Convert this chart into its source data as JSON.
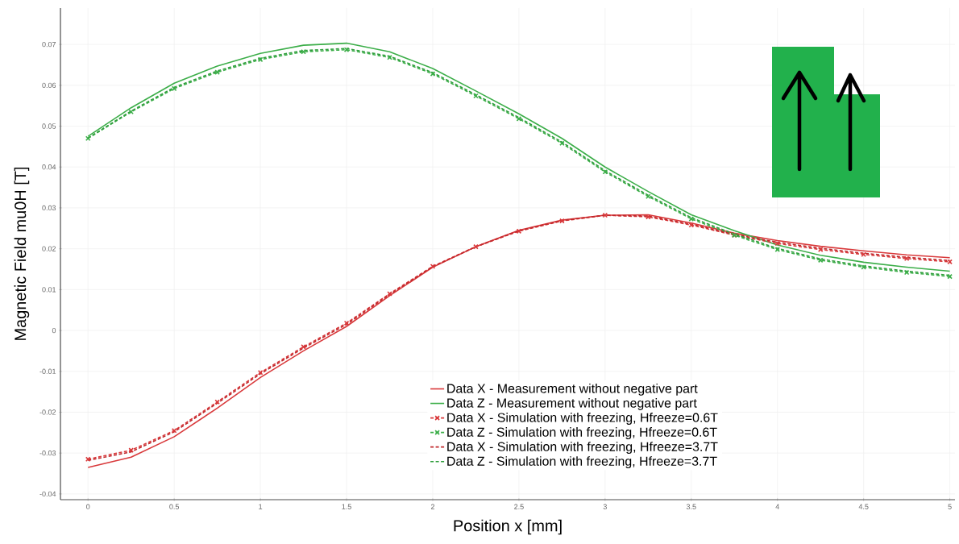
{
  "chart_data": {
    "type": "line",
    "xlabel": "Position x [mm]",
    "ylabel": "Magnetic Field mu0H [T]",
    "x": [
      0,
      0.25,
      0.5,
      0.75,
      1,
      1.25,
      1.5,
      1.75,
      2,
      2.25,
      2.5,
      2.75,
      3,
      3.25,
      3.5,
      3.75,
      4,
      4.25,
      4.5,
      4.75,
      5
    ],
    "series": [
      {
        "name": "Data X - Measurement without negative part",
        "color": "#d9393b",
        "line_style": "solid",
        "marker": "none",
        "values": [
          -0.0335,
          -0.031,
          -0.026,
          -0.019,
          -0.0115,
          -0.005,
          0.001,
          0.0085,
          0.0155,
          0.0205,
          0.0245,
          0.027,
          0.0282,
          0.0283,
          0.0263,
          0.0238,
          0.022,
          0.0206,
          0.0195,
          0.0185,
          0.0178
        ]
      },
      {
        "name": "Data Z - Measurement without negative part",
        "color": "#3cae49",
        "line_style": "solid",
        "marker": "none",
        "values": [
          0.0475,
          0.0545,
          0.0605,
          0.0647,
          0.0678,
          0.0698,
          0.0703,
          0.0682,
          0.0641,
          0.0586,
          0.053,
          0.047,
          0.04,
          0.034,
          0.0283,
          0.0244,
          0.0209,
          0.0184,
          0.0167,
          0.0155,
          0.0145
        ]
      },
      {
        "name": "Data X - Simulation with freezing, Hfreeze=0.6T",
        "color": "#d9393b",
        "line_style": "dashed",
        "marker": "cross",
        "values": [
          -0.0315,
          -0.0293,
          -0.0245,
          -0.0175,
          -0.0103,
          -0.004,
          0.0018,
          0.009,
          0.0157,
          0.0205,
          0.0243,
          0.0268,
          0.0282,
          0.0278,
          0.0258,
          0.0233,
          0.0213,
          0.0198,
          0.0186,
          0.0176,
          0.0168
        ]
      },
      {
        "name": "Data Z - Simulation with freezing, Hfreeze=0.6T",
        "color": "#3cae49",
        "line_style": "dashed",
        "marker": "cross",
        "values": [
          0.047,
          0.0535,
          0.0592,
          0.0632,
          0.0663,
          0.0682,
          0.0687,
          0.0668,
          0.0628,
          0.0574,
          0.0518,
          0.0458,
          0.0388,
          0.0328,
          0.0273,
          0.0233,
          0.0198,
          0.0172,
          0.0155,
          0.0142,
          0.0132
        ]
      },
      {
        "name": "Data X - Simulation with freezing, Hfreeze=3.7T",
        "color": "#c0282c",
        "line_style": "dashed",
        "marker": "none",
        "values": [
          -0.0318,
          -0.0297,
          -0.0248,
          -0.0178,
          -0.0106,
          -0.0043,
          0.0015,
          0.0088,
          0.0156,
          0.0205,
          0.0244,
          0.0269,
          0.0282,
          0.028,
          0.026,
          0.0235,
          0.0216,
          0.0201,
          0.0189,
          0.0179,
          0.0171
        ]
      },
      {
        "name": "Data Z - Simulation with freezing, Hfreeze=3.7T",
        "color": "#2f9e3c",
        "line_style": "dashed",
        "marker": "none",
        "values": [
          0.0471,
          0.0537,
          0.0595,
          0.0635,
          0.0666,
          0.0685,
          0.069,
          0.0671,
          0.0631,
          0.0577,
          0.0521,
          0.0461,
          0.0391,
          0.0331,
          0.0276,
          0.0236,
          0.0201,
          0.0175,
          0.0158,
          0.0145,
          0.0135
        ]
      }
    ],
    "xlim": [
      -0.16,
      5.03
    ],
    "ylim": [
      -0.0414,
      0.0789
    ],
    "xticks": [
      0,
      0.5,
      1,
      1.5,
      2,
      2.5,
      3,
      3.5,
      4,
      4.5,
      5
    ],
    "yticks": [
      -0.04,
      -0.03,
      -0.02,
      -0.01,
      0,
      0.01,
      0.02,
      0.03,
      0.04,
      0.05,
      0.06,
      0.07
    ],
    "grid": true,
    "legend": "bottom right"
  }
}
